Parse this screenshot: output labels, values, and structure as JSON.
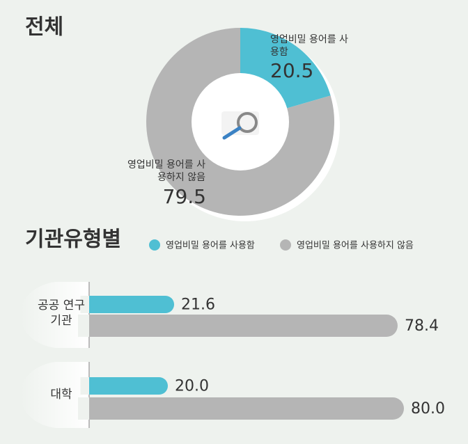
{
  "chart_data": [
    {
      "type": "pie",
      "title": "전체",
      "categories": [
        "영업비밀 용어를 사용함",
        "영업비밀 용어를 사용하지 않음"
      ],
      "values": [
        20.5,
        79.5
      ],
      "colors": [
        "#4fbfd3",
        "#b5b5b5"
      ]
    },
    {
      "type": "bar",
      "orientation": "horizontal",
      "title": "기관유형별",
      "categories": [
        "공공 연구기관",
        "대학"
      ],
      "series": [
        {
          "name": "영업비밀 용어를 사용함",
          "color": "#4fbfd3",
          "values": [
            21.6,
            20.0
          ],
          "value_labels": [
            "21.6",
            "20.0"
          ]
        },
        {
          "name": "영업비밀 용어를 사용하지 않음",
          "color": "#b5b5b5",
          "values": [
            78.4,
            80.0
          ],
          "value_labels": [
            "78.4",
            "80.0"
          ]
        }
      ],
      "legend": "top"
    }
  ]
}
